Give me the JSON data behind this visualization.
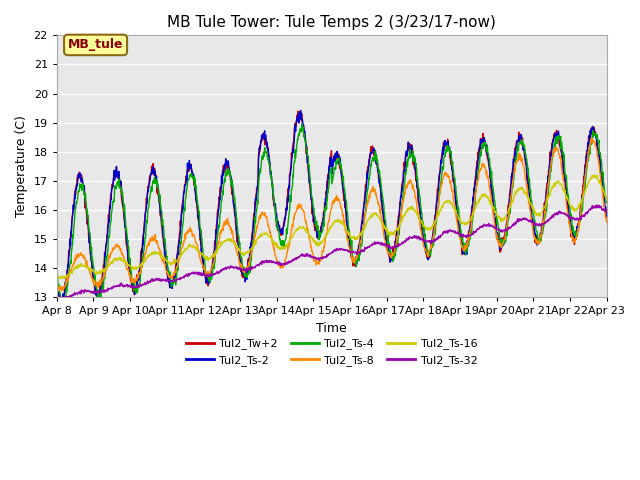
{
  "title": "MB Tule Tower: Tule Temps 2 (3/23/17-now)",
  "xlabel": "Time",
  "ylabel": "Temperature (C)",
  "ylim": [
    13.0,
    22.0
  ],
  "xlim": [
    0,
    15
  ],
  "yticks": [
    13.0,
    14.0,
    15.0,
    16.0,
    17.0,
    18.0,
    19.0,
    20.0,
    21.0,
    22.0
  ],
  "xtick_labels": [
    "Apr 8",
    "Apr 9",
    "Apr 10",
    "Apr 11",
    "Apr 12",
    "Apr 13",
    "Apr 14",
    "Apr 15",
    "Apr 16",
    "Apr 17",
    "Apr 18",
    "Apr 19",
    "Apr 20",
    "Apr 21",
    "Apr 22",
    "Apr 23"
  ],
  "legend_label": "MB_tule",
  "series": [
    {
      "name": "Tul2_Tw+2",
      "color": "#cc0000"
    },
    {
      "name": "Tul2_Ts-2",
      "color": "#0000cc"
    },
    {
      "name": "Tul2_Ts-4",
      "color": "#00aa00"
    },
    {
      "name": "Tul2_Ts-8",
      "color": "#ff8800"
    },
    {
      "name": "Tul2_Ts-16",
      "color": "#cccc00"
    },
    {
      "name": "Tul2_Ts-32",
      "color": "#9900aa"
    }
  ],
  "bg_color": "#e8e8e8",
  "grid_color": "#ffffff",
  "title_fontsize": 11,
  "axis_fontsize": 9,
  "tick_fontsize": 8,
  "legend_fontsize": 8
}
